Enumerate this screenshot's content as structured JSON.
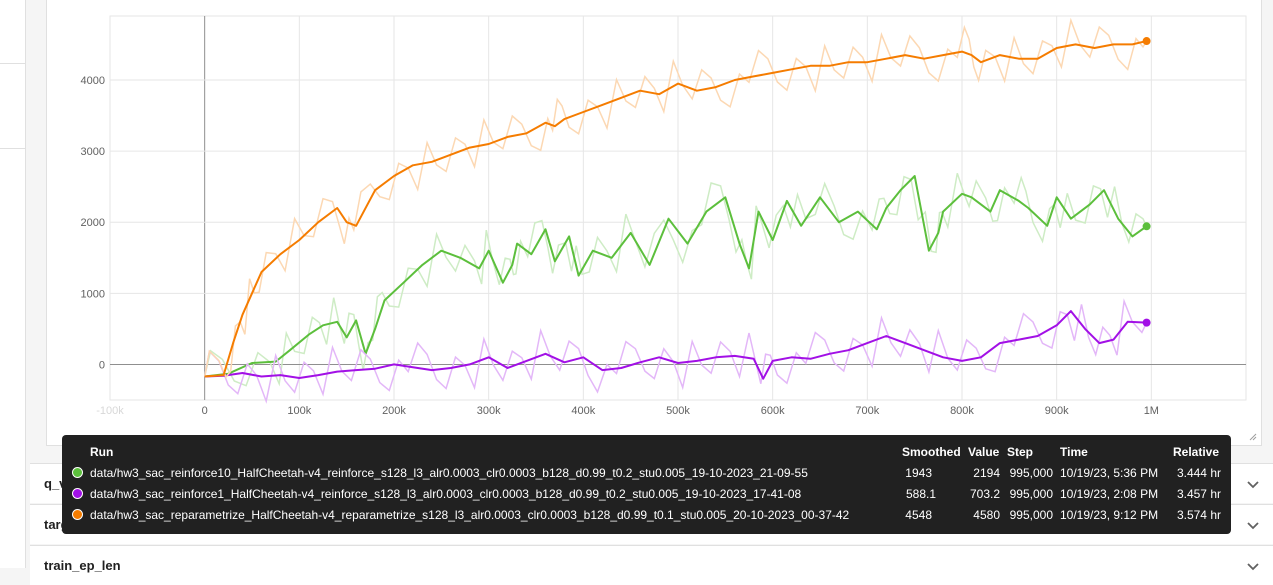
{
  "collapsed_cards": [
    {
      "title": "q_values"
    },
    {
      "title": "target_values"
    },
    {
      "title": "train_ep_len"
    }
  ],
  "chart_data": {
    "type": "line",
    "title": "",
    "xlabel": "",
    "ylabel": "",
    "x_ticks": [
      "-100k",
      "0",
      "100k",
      "200k",
      "300k",
      "400k",
      "500k",
      "600k",
      "700k",
      "800k",
      "900k",
      "1M"
    ],
    "y_ticks": [
      "0",
      "1000",
      "2000",
      "3000",
      "4000"
    ],
    "xlim": [
      -100000,
      1100000
    ],
    "ylim": [
      -500,
      4900
    ],
    "grid": true,
    "series": [
      {
        "name": "data/hw3_sac_reinforce10_HalfCheetah-v4_reinforce_s128_l3_alr0.0003_clr0.0003_b128_d0.99_t0.2_stu0.005_19-10-2023_21-09-55",
        "color": "#5cbf3c",
        "x": [
          0,
          25000,
          50000,
          75000,
          90000,
          110000,
          125000,
          140000,
          150000,
          160000,
          170000,
          180000,
          190000,
          210000,
          230000,
          250000,
          270000,
          290000,
          300000,
          315000,
          325000,
          330000,
          345000,
          360000,
          370000,
          385000,
          395000,
          410000,
          430000,
          450000,
          470000,
          490000,
          510000,
          530000,
          550000,
          565000,
          575000,
          585000,
          600000,
          615000,
          630000,
          650000,
          670000,
          690000,
          710000,
          720000,
          735000,
          750000,
          765000,
          775000,
          780000,
          800000,
          810000,
          830000,
          840000,
          860000,
          870000,
          890000,
          900000,
          915000,
          935000,
          950000,
          965000,
          980000,
          995000
        ],
        "y": [
          -170,
          -130,
          20,
          40,
          200,
          420,
          550,
          600,
          380,
          620,
          150,
          500,
          900,
          1150,
          1400,
          1600,
          1500,
          1350,
          1600,
          1150,
          1400,
          1700,
          1550,
          1900,
          1450,
          1800,
          1250,
          1600,
          1500,
          1850,
          1400,
          2050,
          1700,
          2150,
          2350,
          1700,
          1350,
          2150,
          1750,
          2300,
          1950,
          2350,
          2000,
          2150,
          1900,
          2200,
          2450,
          2650,
          1600,
          1850,
          2150,
          2400,
          2350,
          2150,
          2450,
          2300,
          2200,
          1950,
          2350,
          2050,
          2250,
          2450,
          2050,
          1800,
          1943
        ],
        "smoothed": "1943",
        "value": "2194",
        "step": "995,000",
        "time": "10/19/23, 5:36 PM",
        "relative": "3.444 hr"
      },
      {
        "name": "data/hw3_sac_reinforce1_HalfCheetah-v4_reinforce_s128_l3_alr0.0003_clr0.0003_b128_d0.99_t0.2_stu0.005_19-10-2023_17-41-08",
        "color": "#a210e6",
        "x": [
          0,
          20000,
          40000,
          60000,
          80000,
          100000,
          120000,
          140000,
          160000,
          180000,
          200000,
          220000,
          240000,
          260000,
          280000,
          300000,
          320000,
          340000,
          360000,
          380000,
          400000,
          420000,
          440000,
          460000,
          480000,
          500000,
          520000,
          540000,
          560000,
          580000,
          590000,
          600000,
          620000,
          640000,
          660000,
          680000,
          700000,
          720000,
          740000,
          760000,
          780000,
          800000,
          820000,
          840000,
          860000,
          880000,
          900000,
          915000,
          930000,
          945000,
          960000,
          975000,
          995000
        ],
        "y": [
          -170,
          -160,
          -120,
          -170,
          -150,
          -190,
          -150,
          -100,
          -80,
          -60,
          0,
          -40,
          -80,
          -50,
          0,
          100,
          -50,
          50,
          150,
          30,
          100,
          -80,
          -50,
          30,
          100,
          20,
          50,
          100,
          120,
          80,
          -200,
          50,
          100,
          80,
          150,
          200,
          300,
          400,
          300,
          200,
          100,
          50,
          100,
          300,
          350,
          400,
          550,
          750,
          500,
          300,
          350,
          600,
          588
        ],
        "smoothed": "588.1",
        "value": "703.2",
        "step": "995,000",
        "time": "10/19/23, 2:08 PM",
        "relative": "3.457 hr"
      },
      {
        "name": "data/hw3_sac_reparametrize_HalfCheetah-v4_reparametrize_s128_l3_alr0.0003_clr0.0003_b128_d0.99_t0.1_stu0.005_20-10-2023_00-37-42",
        "color": "#f57c00",
        "x": [
          0,
          20000,
          30000,
          40000,
          50000,
          60000,
          80000,
          100000,
          120000,
          140000,
          150000,
          160000,
          180000,
          200000,
          220000,
          240000,
          260000,
          280000,
          300000,
          320000,
          340000,
          360000,
          370000,
          380000,
          400000,
          420000,
          440000,
          460000,
          480000,
          500000,
          520000,
          540000,
          560000,
          580000,
          600000,
          620000,
          640000,
          660000,
          680000,
          700000,
          720000,
          740000,
          760000,
          780000,
          800000,
          810000,
          820000,
          840000,
          860000,
          880000,
          900000,
          920000,
          940000,
          960000,
          980000,
          995000
        ],
        "y": [
          -170,
          -150,
          300,
          700,
          1000,
          1300,
          1550,
          1750,
          2000,
          2200,
          2000,
          1950,
          2450,
          2650,
          2800,
          2850,
          2950,
          3050,
          3100,
          3200,
          3250,
          3400,
          3350,
          3450,
          3550,
          3650,
          3750,
          3850,
          3800,
          3950,
          3850,
          3900,
          4000,
          4050,
          4100,
          4150,
          4200,
          4200,
          4250,
          4250,
          4300,
          4350,
          4300,
          4350,
          4400,
          4350,
          4250,
          4350,
          4300,
          4300,
          4450,
          4500,
          4450,
          4500,
          4500,
          4548
        ],
        "smoothed": "4548",
        "value": "4580",
        "step": "995,000",
        "time": "10/19/23, 9:12 PM",
        "relative": "3.574 hr"
      }
    ]
  },
  "tooltip": {
    "headers": {
      "run": "Run",
      "smoothed": "Smoothed",
      "value": "Value",
      "step": "Step",
      "time": "Time",
      "relative": "Relative"
    }
  }
}
